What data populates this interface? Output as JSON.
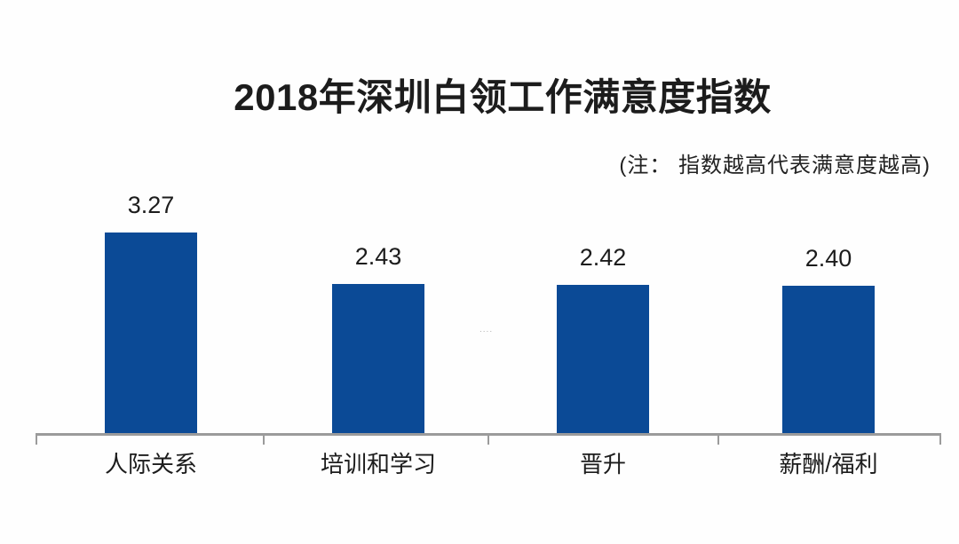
{
  "header": {
    "title": "2018年深圳白领工作满意度指数",
    "note": "(注： 指数越高代表满意度越高)"
  },
  "watermark": {
    "dots": "...."
  },
  "chart_data": {
    "type": "bar",
    "title": "2018年深圳白领工作满意度指数",
    "annotation": "(注： 指数越高代表满意度越高)",
    "categories": [
      "人际关系",
      "培训和学习",
      "晋升",
      "薪酬/福利"
    ],
    "values": [
      3.27,
      2.43,
      2.42,
      2.4
    ],
    "value_labels": [
      "3.27",
      "2.43",
      "2.42",
      "2.40"
    ],
    "xlabel": "",
    "ylabel": "",
    "ylim": [
      0,
      3.6
    ],
    "grid": false,
    "legend": false,
    "y_axis_visible": false,
    "bar_color": "#0b4a96",
    "axis_color": "#9b9b9b",
    "text_color": "#1c1c1c",
    "background_color": "#fefefe"
  }
}
